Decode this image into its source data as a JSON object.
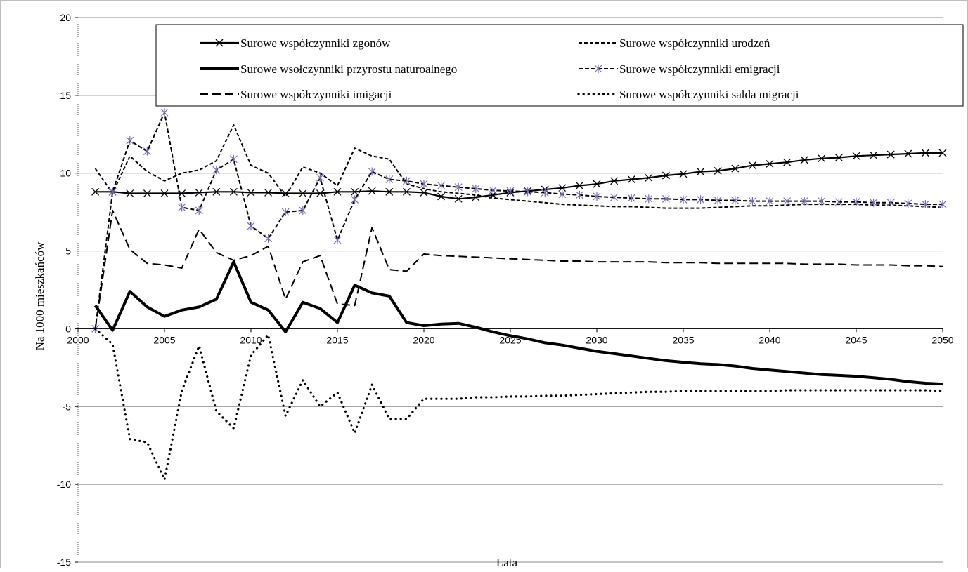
{
  "chart_data": {
    "type": "line",
    "xlabel": "Lata",
    "ylabel": "Na 1000 mieszkańców",
    "xlim": [
      2000,
      2050
    ],
    "ylim": [
      -15,
      20
    ],
    "x_ticks": [
      2000,
      2005,
      2010,
      2015,
      2020,
      2025,
      2030,
      2035,
      2040,
      2045,
      2050
    ],
    "y_ticks": [
      -15,
      -10,
      -5,
      0,
      5,
      10,
      15,
      20
    ],
    "grid": "horizontal",
    "legend_position": "top",
    "x": [
      2001,
      2002,
      2003,
      2004,
      2005,
      2006,
      2007,
      2008,
      2009,
      2010,
      2011,
      2012,
      2013,
      2014,
      2015,
      2016,
      2017,
      2018,
      2019,
      2020,
      2021,
      2022,
      2023,
      2024,
      2025,
      2026,
      2027,
      2028,
      2029,
      2030,
      2031,
      2032,
      2033,
      2034,
      2035,
      2036,
      2037,
      2038,
      2039,
      2040,
      2041,
      2042,
      2043,
      2044,
      2045,
      2046,
      2047,
      2048,
      2049,
      2050
    ],
    "series": [
      {
        "name": "Surowe współczynniki zgonów",
        "style": "solid-x",
        "values": [
          8.8,
          8.8,
          8.7,
          8.7,
          8.7,
          8.7,
          8.75,
          8.8,
          8.8,
          8.75,
          8.75,
          8.7,
          8.7,
          8.7,
          8.8,
          8.8,
          8.85,
          8.8,
          8.8,
          8.75,
          8.5,
          8.35,
          8.45,
          8.6,
          8.75,
          8.85,
          8.95,
          9.05,
          9.2,
          9.3,
          9.5,
          9.6,
          9.7,
          9.85,
          9.95,
          10.1,
          10.15,
          10.3,
          10.5,
          10.6,
          10.7,
          10.85,
          10.95,
          11.0,
          11.1,
          11.15,
          11.2,
          11.25,
          11.3,
          11.3
        ]
      },
      {
        "name": "Surowe współczynniki urodzeń",
        "style": "short-dash",
        "values": [
          10.3,
          8.7,
          11.1,
          10.1,
          9.5,
          10.0,
          10.2,
          10.8,
          13.1,
          10.5,
          10.0,
          8.5,
          10.4,
          10.0,
          9.2,
          11.6,
          11.1,
          10.9,
          9.3,
          9.0,
          8.8,
          8.7,
          8.6,
          8.4,
          8.3,
          8.2,
          8.1,
          8.0,
          7.95,
          7.9,
          7.85,
          7.85,
          7.8,
          7.75,
          7.75,
          7.75,
          7.8,
          7.85,
          7.9,
          7.9,
          7.95,
          8.0,
          8.0,
          8.0,
          8.0,
          7.95,
          7.95,
          7.9,
          7.85,
          7.8
        ]
      },
      {
        "name": "Surowe wsołczynniki przyrostu naturoalnego",
        "style": "thick-solid",
        "values": [
          1.5,
          -0.1,
          2.4,
          1.4,
          0.8,
          1.2,
          1.4,
          1.9,
          4.3,
          1.7,
          1.2,
          -0.2,
          1.7,
          1.3,
          0.4,
          2.8,
          2.3,
          2.1,
          0.4,
          0.2,
          0.3,
          0.35,
          0.1,
          -0.2,
          -0.45,
          -0.65,
          -0.9,
          -1.05,
          -1.25,
          -1.45,
          -1.6,
          -1.75,
          -1.9,
          -2.05,
          -2.15,
          -2.25,
          -2.3,
          -2.4,
          -2.55,
          -2.65,
          -2.75,
          -2.85,
          -2.95,
          -3.0,
          -3.05,
          -3.15,
          -3.25,
          -3.4,
          -3.5,
          -3.55
        ]
      },
      {
        "name": "Surowe współczynnikii emigracji",
        "style": "dash-star",
        "values": [
          0.0,
          8.8,
          12.1,
          11.4,
          13.9,
          7.8,
          7.6,
          10.2,
          10.9,
          6.6,
          5.8,
          7.5,
          7.6,
          9.7,
          5.7,
          8.3,
          10.1,
          9.6,
          9.5,
          9.3,
          9.2,
          9.1,
          9.0,
          8.9,
          8.85,
          8.8,
          8.75,
          8.65,
          8.6,
          8.5,
          8.45,
          8.4,
          8.35,
          8.35,
          8.3,
          8.3,
          8.25,
          8.25,
          8.2,
          8.2,
          8.2,
          8.2,
          8.2,
          8.15,
          8.15,
          8.1,
          8.1,
          8.05,
          8.0,
          8.0
        ]
      },
      {
        "name": "Surowe współczynniki imigacji",
        "style": "long-dash",
        "values": [
          0.0,
          7.6,
          5.1,
          4.2,
          4.1,
          3.9,
          6.4,
          4.9,
          4.4,
          4.7,
          5.3,
          1.9,
          4.3,
          4.7,
          1.6,
          1.5,
          6.5,
          3.8,
          3.7,
          4.8,
          4.7,
          4.65,
          4.6,
          4.55,
          4.5,
          4.45,
          4.4,
          4.35,
          4.35,
          4.3,
          4.3,
          4.3,
          4.3,
          4.25,
          4.25,
          4.25,
          4.2,
          4.2,
          4.2,
          4.2,
          4.2,
          4.15,
          4.15,
          4.15,
          4.1,
          4.1,
          4.1,
          4.05,
          4.05,
          4.0
        ]
      },
      {
        "name": "Surowe współczynniki salda migracji",
        "style": "dotted",
        "values": [
          0.0,
          -1.0,
          -7.1,
          -7.3,
          -9.7,
          -4.0,
          -1.1,
          -5.3,
          -6.4,
          -1.7,
          -0.4,
          -5.6,
          -3.3,
          -5.0,
          -4.1,
          -6.7,
          -3.6,
          -5.8,
          -5.8,
          -4.5,
          -4.5,
          -4.5,
          -4.4,
          -4.4,
          -4.35,
          -4.35,
          -4.3,
          -4.3,
          -4.25,
          -4.2,
          -4.15,
          -4.1,
          -4.05,
          -4.05,
          -4.0,
          -4.0,
          -4.0,
          -4.0,
          -4.0,
          -4.0,
          -3.95,
          -3.95,
          -3.95,
          -3.95,
          -3.95,
          -3.95,
          -3.95,
          -3.95,
          -3.95,
          -4.0
        ]
      }
    ]
  }
}
